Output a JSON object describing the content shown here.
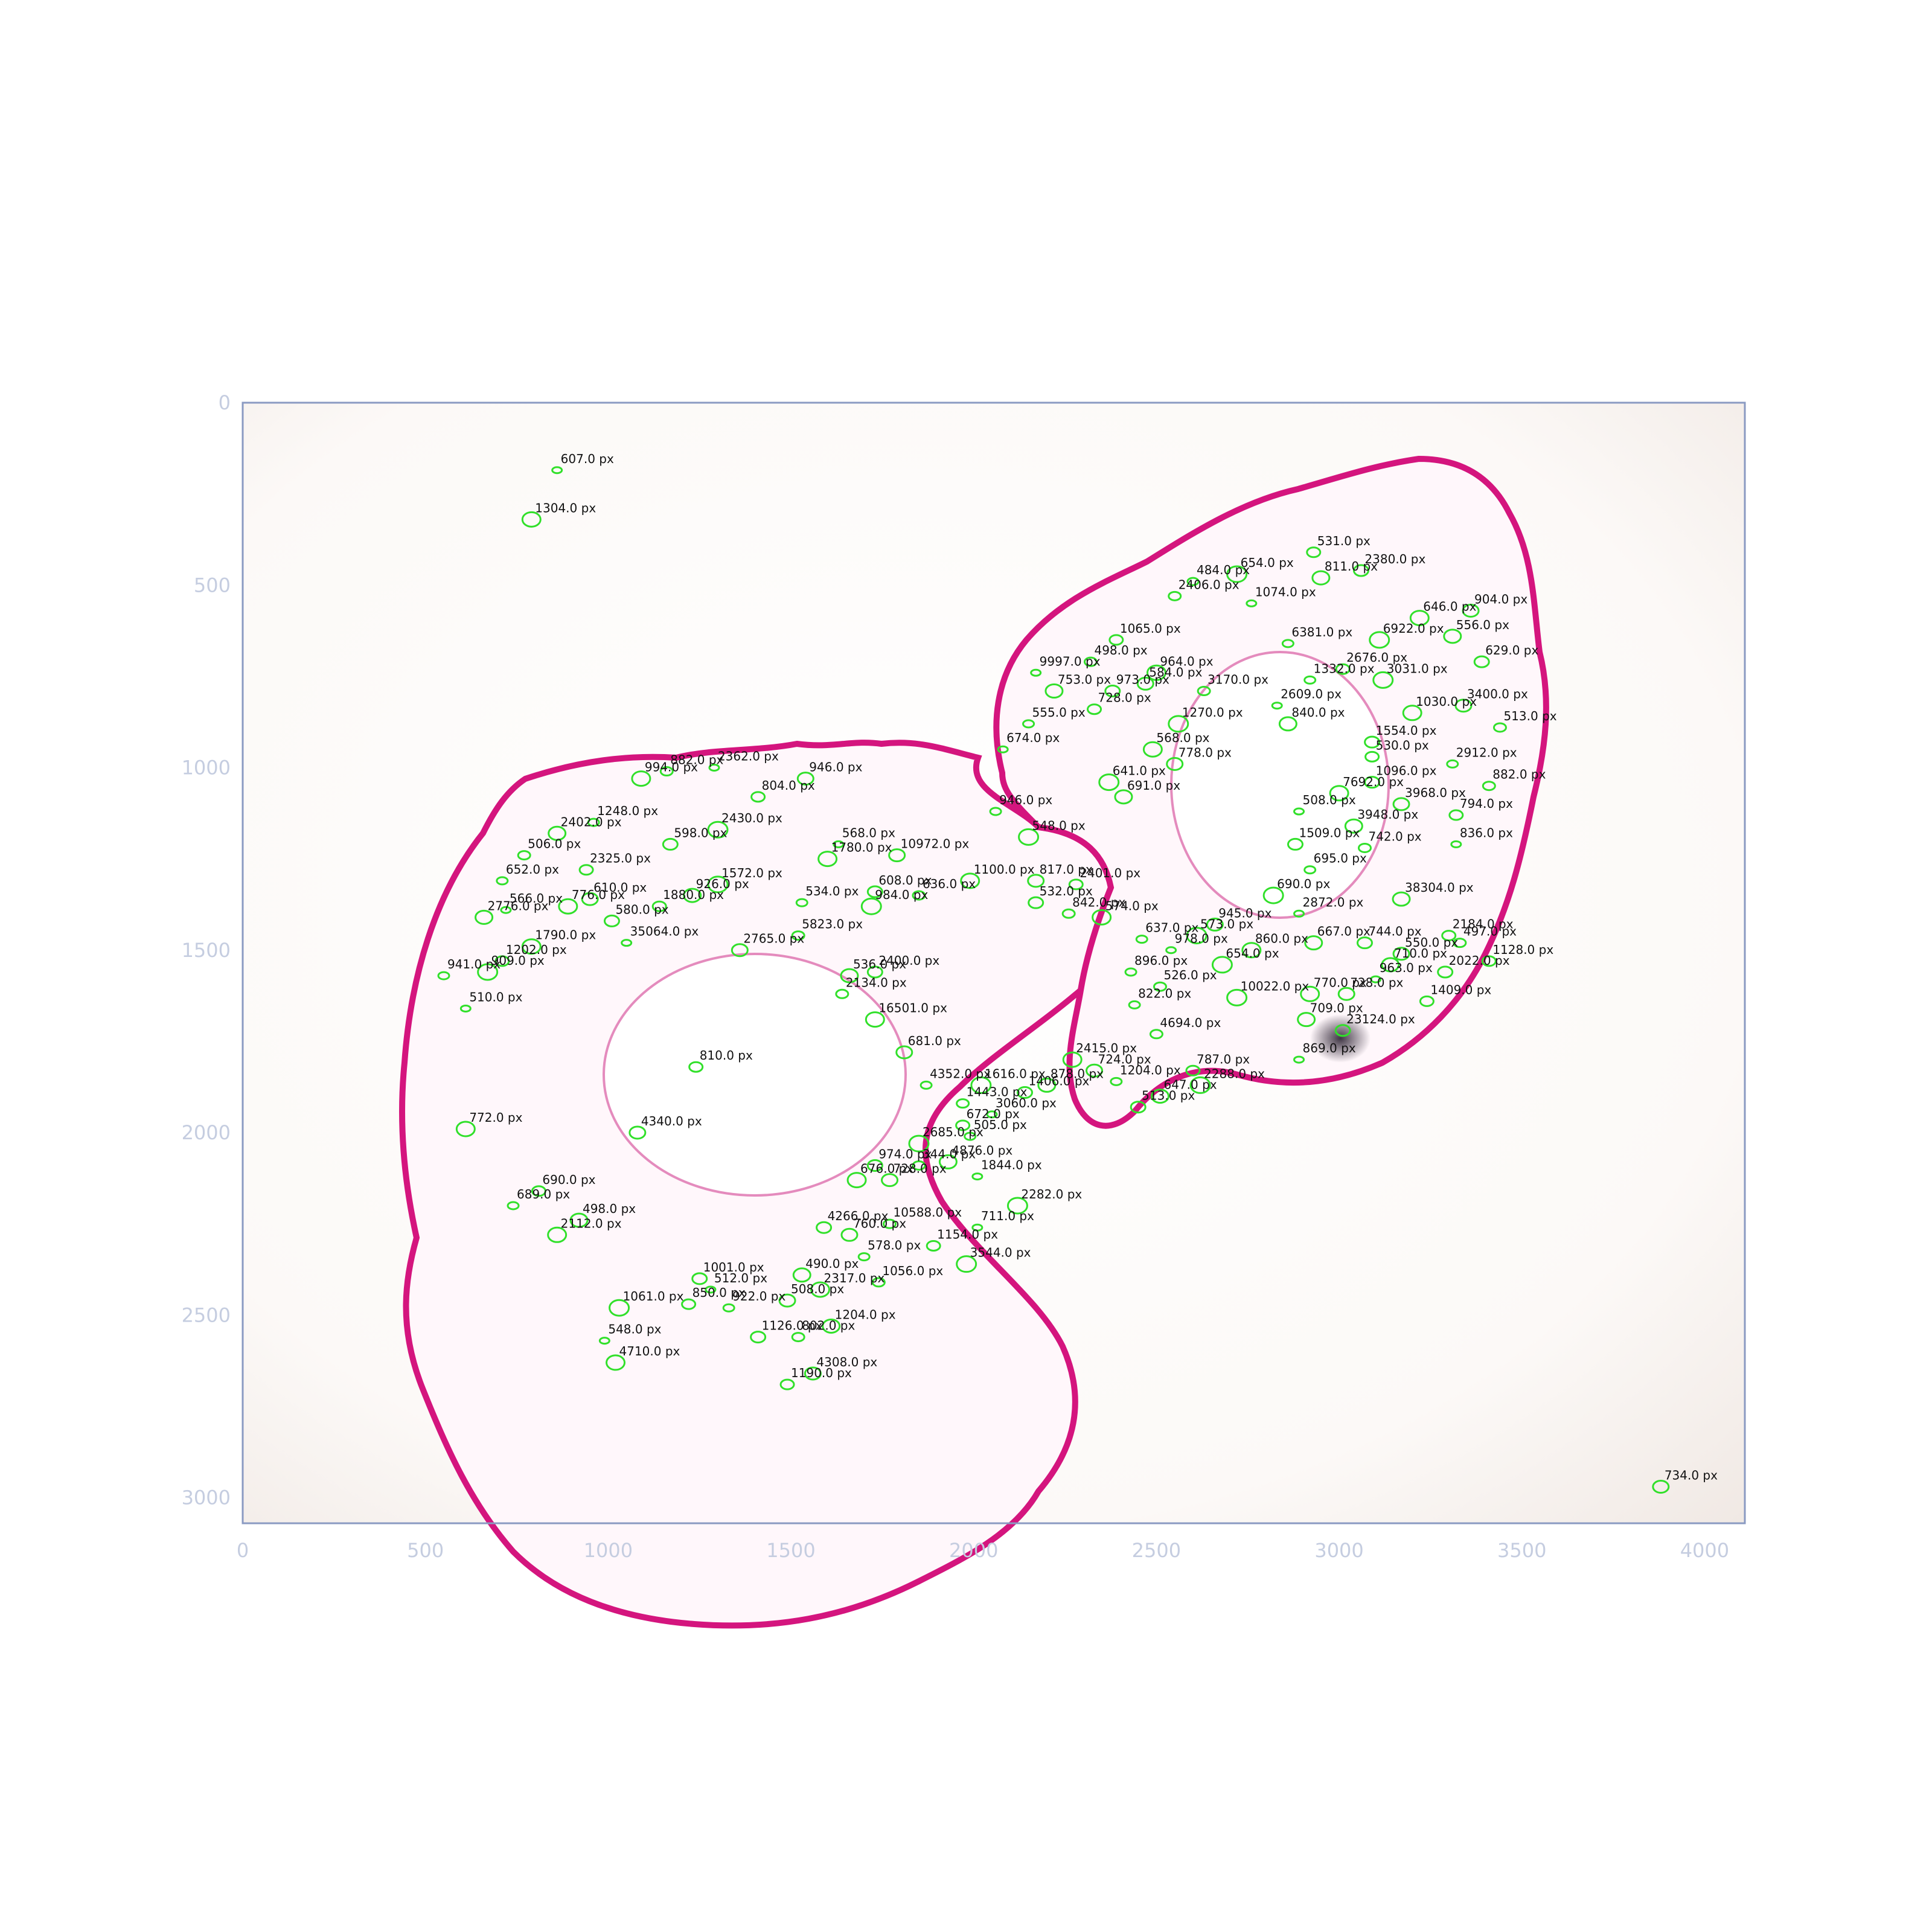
{
  "plot": {
    "x_ticks": [
      0,
      500,
      1000,
      1500,
      2000,
      2500,
      3000,
      3500,
      4000
    ],
    "y_ticks": [
      0,
      500,
      1000,
      1500,
      2000,
      2500,
      3000
    ],
    "x_range": [
      0,
      4110
    ],
    "y_range": [
      0,
      3070
    ],
    "colors": {
      "axis": "#8a9ac2",
      "tick_text": "#c5cde0",
      "contour": "#31e02a",
      "tissue": "#d4157e",
      "background": "#fbf8f6"
    }
  },
  "annotations": [
    {
      "text": "607.0 px",
      "x": 870,
      "y": 165
    },
    {
      "text": "1304.0 px",
      "x": 800,
      "y": 300
    },
    {
      "text": "734.0 px",
      "x": 3890,
      "y": 2950
    },
    {
      "text": "531.0 px",
      "x": 2940,
      "y": 390
    },
    {
      "text": "484.0 px",
      "x": 2610,
      "y": 470
    },
    {
      "text": "654.0 px",
      "x": 2730,
      "y": 450
    },
    {
      "text": "811.0 px",
      "x": 2960,
      "y": 460
    },
    {
      "text": "2380.0 px",
      "x": 3070,
      "y": 440
    },
    {
      "text": "2406.0 px",
      "x": 2560,
      "y": 510
    },
    {
      "text": "1074.0 px",
      "x": 2770,
      "y": 530
    },
    {
      "text": "646.0 px",
      "x": 3230,
      "y": 570
    },
    {
      "text": "904.0 px",
      "x": 3370,
      "y": 550
    },
    {
      "text": "1065.0 px",
      "x": 2400,
      "y": 630
    },
    {
      "text": "6381.0 px",
      "x": 2870,
      "y": 640
    },
    {
      "text": "6922.0 px",
      "x": 3120,
      "y": 630
    },
    {
      "text": "556.0 px",
      "x": 3320,
      "y": 620
    },
    {
      "text": "629.0 px",
      "x": 3400,
      "y": 690
    },
    {
      "text": "498.0 px",
      "x": 2330,
      "y": 690
    },
    {
      "text": "9997.0 px",
      "x": 2180,
      "y": 720
    },
    {
      "text": "964.0 px",
      "x": 2510,
      "y": 720
    },
    {
      "text": "584.0 px",
      "x": 2480,
      "y": 750
    },
    {
      "text": "2676.0 px",
      "x": 3020,
      "y": 710
    },
    {
      "text": "1332.0 px",
      "x": 2930,
      "y": 740
    },
    {
      "text": "3031.0 px",
      "x": 3130,
      "y": 740
    },
    {
      "text": "753.0 px",
      "x": 2230,
      "y": 770
    },
    {
      "text": "973.0 px",
      "x": 2390,
      "y": 770
    },
    {
      "text": "3170.0 px",
      "x": 2640,
      "y": 770
    },
    {
      "text": "2609.0 px",
      "x": 2840,
      "y": 810
    },
    {
      "text": "1030.0 px",
      "x": 3210,
      "y": 830
    },
    {
      "text": "3400.0 px",
      "x": 3350,
      "y": 810
    },
    {
      "text": "728.0 px",
      "x": 2340,
      "y": 820
    },
    {
      "text": "555.0 px",
      "x": 2160,
      "y": 860
    },
    {
      "text": "1270.0 px",
      "x": 2570,
      "y": 860
    },
    {
      "text": "840.0 px",
      "x": 2870,
      "y": 860
    },
    {
      "text": "1554.0 px",
      "x": 3100,
      "y": 910
    },
    {
      "text": "513.0 px",
      "x": 3450,
      "y": 870
    },
    {
      "text": "674.0 px",
      "x": 2090,
      "y": 930
    },
    {
      "text": "568.0 px",
      "x": 2500,
      "y": 930
    },
    {
      "text": "778.0 px",
      "x": 2560,
      "y": 970
    },
    {
      "text": "530.0 px",
      "x": 3100,
      "y": 950
    },
    {
      "text": "2912.0 px",
      "x": 3320,
      "y": 970
    },
    {
      "text": "641.0 px",
      "x": 2380,
      "y": 1020
    },
    {
      "text": "691.0 px",
      "x": 2420,
      "y": 1060
    },
    {
      "text": "1096.0 px",
      "x": 3100,
      "y": 1020
    },
    {
      "text": "882.0 px",
      "x": 3420,
      "y": 1030
    },
    {
      "text": "508.0 px",
      "x": 2900,
      "y": 1100
    },
    {
      "text": "7692.0 px",
      "x": 3010,
      "y": 1050
    },
    {
      "text": "3968.0 px",
      "x": 3180,
      "y": 1080
    },
    {
      "text": "794.0 px",
      "x": 3330,
      "y": 1110
    },
    {
      "text": "946.0 px",
      "x": 2070,
      "y": 1100
    },
    {
      "text": "548.0 px",
      "x": 2160,
      "y": 1170
    },
    {
      "text": "3948.0 px",
      "x": 3050,
      "y": 1140
    },
    {
      "text": "1509.0 px",
      "x": 2890,
      "y": 1190
    },
    {
      "text": "742.0 px",
      "x": 3080,
      "y": 1200
    },
    {
      "text": "836.0 px",
      "x": 3330,
      "y": 1190
    },
    {
      "text": "1100.0 px",
      "x": 2000,
      "y": 1290
    },
    {
      "text": "817.0 px",
      "x": 2180,
      "y": 1290
    },
    {
      "text": "2401.0 px",
      "x": 2290,
      "y": 1300
    },
    {
      "text": "695.0 px",
      "x": 2930,
      "y": 1260
    },
    {
      "text": "690.0 px",
      "x": 2830,
      "y": 1330
    },
    {
      "text": "38304.0 px",
      "x": 3180,
      "y": 1340
    },
    {
      "text": "532.0 px",
      "x": 2180,
      "y": 1350
    },
    {
      "text": "842.0 px",
      "x": 2270,
      "y": 1380
    },
    {
      "text": "2872.0 px",
      "x": 2900,
      "y": 1380
    },
    {
      "text": "574.0 px",
      "x": 2360,
      "y": 1390
    },
    {
      "text": "945.0 px",
      "x": 2670,
      "y": 1410
    },
    {
      "text": "2184.0 px",
      "x": 3310,
      "y": 1440
    },
    {
      "text": "637.0 px",
      "x": 2470,
      "y": 1450
    },
    {
      "text": "573.0 px",
      "x": 2620,
      "y": 1440
    },
    {
      "text": "667.0 px",
      "x": 2940,
      "y": 1460
    },
    {
      "text": "744.0 px",
      "x": 3080,
      "y": 1460
    },
    {
      "text": "497.0 px",
      "x": 3340,
      "y": 1460
    },
    {
      "text": "978.0 px",
      "x": 2550,
      "y": 1480
    },
    {
      "text": "860.0 px",
      "x": 2770,
      "y": 1480
    },
    {
      "text": "550.0 px",
      "x": 3180,
      "y": 1490
    },
    {
      "text": "1128.0 px",
      "x": 3420,
      "y": 1510
    },
    {
      "text": "896.0 px",
      "x": 2440,
      "y": 1540
    },
    {
      "text": "654.0 px",
      "x": 2690,
      "y": 1520
    },
    {
      "text": "710.0 px",
      "x": 3150,
      "y": 1520
    },
    {
      "text": "2022.0 px",
      "x": 3300,
      "y": 1540
    },
    {
      "text": "526.0 px",
      "x": 2520,
      "y": 1580
    },
    {
      "text": "963.0 px",
      "x": 3110,
      "y": 1560
    },
    {
      "text": "770.0 px",
      "x": 2930,
      "y": 1600
    },
    {
      "text": "728.0 px",
      "x": 3030,
      "y": 1600
    },
    {
      "text": "1409.0 px",
      "x": 3250,
      "y": 1620
    },
    {
      "text": "822.0 px",
      "x": 2450,
      "y": 1630
    },
    {
      "text": "10022.0 px",
      "x": 2730,
      "y": 1610
    },
    {
      "text": "709.0 px",
      "x": 2920,
      "y": 1670
    },
    {
      "text": "23124.0 px",
      "x": 3020,
      "y": 1700
    },
    {
      "text": "4694.0 px",
      "x": 2510,
      "y": 1710
    },
    {
      "text": "869.0 px",
      "x": 2900,
      "y": 1780
    },
    {
      "text": "2415.0 px",
      "x": 2280,
      "y": 1780
    },
    {
      "text": "724.0 px",
      "x": 2340,
      "y": 1810
    },
    {
      "text": "787.0 px",
      "x": 2610,
      "y": 1810
    },
    {
      "text": "1204.0 px",
      "x": 2400,
      "y": 1840
    },
    {
      "text": "2288.0 px",
      "x": 2630,
      "y": 1850
    },
    {
      "text": "647.0 px",
      "x": 2520,
      "y": 1880
    },
    {
      "text": "513.0 px",
      "x": 2460,
      "y": 1910
    },
    {
      "text": "882.0 px",
      "x": 1170,
      "y": 990
    },
    {
      "text": "2362.0 px",
      "x": 1300,
      "y": 980
    },
    {
      "text": "994.0 px",
      "x": 1100,
      "y": 1010
    },
    {
      "text": "946.0 px",
      "x": 1550,
      "y": 1010
    },
    {
      "text": "804.0 px",
      "x": 1420,
      "y": 1060
    },
    {
      "text": "1248.0 px",
      "x": 970,
      "y": 1130
    },
    {
      "text": "2430.0 px",
      "x": 1310,
      "y": 1150
    },
    {
      "text": "2402.0 px",
      "x": 870,
      "y": 1160
    },
    {
      "text": "598.0 px",
      "x": 1180,
      "y": 1190
    },
    {
      "text": "506.0 px",
      "x": 780,
      "y": 1220
    },
    {
      "text": "568.0 px",
      "x": 1640,
      "y": 1190
    },
    {
      "text": "1780.0 px",
      "x": 1610,
      "y": 1230
    },
    {
      "text": "10972.0 px",
      "x": 1800,
      "y": 1220
    },
    {
      "text": "2325.0 px",
      "x": 950,
      "y": 1260
    },
    {
      "text": "652.0 px",
      "x": 720,
      "y": 1290
    },
    {
      "text": "1572.0 px",
      "x": 1310,
      "y": 1300
    },
    {
      "text": "926.0 px",
      "x": 1240,
      "y": 1330
    },
    {
      "text": "608.0 px",
      "x": 1740,
      "y": 1320
    },
    {
      "text": "636.0 px",
      "x": 1860,
      "y": 1330
    },
    {
      "text": "566.0 px",
      "x": 730,
      "y": 1370
    },
    {
      "text": "776.0 px",
      "x": 900,
      "y": 1360
    },
    {
      "text": "610.0 px",
      "x": 960,
      "y": 1340
    },
    {
      "text": "1880.0 px",
      "x": 1150,
      "y": 1360
    },
    {
      "text": "534.0 px",
      "x": 1540,
      "y": 1350
    },
    {
      "text": "984.0 px",
      "x": 1730,
      "y": 1360
    },
    {
      "text": "2776.0 px",
      "x": 670,
      "y": 1390
    },
    {
      "text": "580.0 px",
      "x": 1020,
      "y": 1400
    },
    {
      "text": "5823.0 px",
      "x": 1530,
      "y": 1440
    },
    {
      "text": "35064.0 px",
      "x": 1060,
      "y": 1460
    },
    {
      "text": "1790.0 px",
      "x": 800,
      "y": 1470
    },
    {
      "text": "2765.0 px",
      "x": 1370,
      "y": 1480
    },
    {
      "text": "1202.0 px",
      "x": 720,
      "y": 1510
    },
    {
      "text": "941.0 px",
      "x": 560,
      "y": 1550
    },
    {
      "text": "909.0 px",
      "x": 680,
      "y": 1540
    },
    {
      "text": "536.0 px",
      "x": 1670,
      "y": 1550
    },
    {
      "text": "2400.0 px",
      "x": 1740,
      "y": 1540
    },
    {
      "text": "2134.0 px",
      "x": 1650,
      "y": 1600
    },
    {
      "text": "510.0 px",
      "x": 620,
      "y": 1640
    },
    {
      "text": "16501.0 px",
      "x": 1740,
      "y": 1670
    },
    {
      "text": "681.0 px",
      "x": 1820,
      "y": 1760
    },
    {
      "text": "810.0 px",
      "x": 1250,
      "y": 1800
    },
    {
      "text": "4352.0 px",
      "x": 1880,
      "y": 1850
    },
    {
      "text": "1616.0 px",
      "x": 2030,
      "y": 1850
    },
    {
      "text": "878.0 px",
      "x": 2210,
      "y": 1850
    },
    {
      "text": "1406.0 px",
      "x": 2150,
      "y": 1870
    },
    {
      "text": "1443.0 px",
      "x": 1980,
      "y": 1900
    },
    {
      "text": "3060.0 px",
      "x": 2060,
      "y": 1930
    },
    {
      "text": "772.0 px",
      "x": 620,
      "y": 1970
    },
    {
      "text": "4340.0 px",
      "x": 1090,
      "y": 1980
    },
    {
      "text": "672.0 px",
      "x": 1980,
      "y": 1960
    },
    {
      "text": "505.0 px",
      "x": 2000,
      "y": 1990
    },
    {
      "text": "2685.0 px",
      "x": 1860,
      "y": 2010
    },
    {
      "text": "4876.0 px",
      "x": 1940,
      "y": 2060
    },
    {
      "text": "974.0 px",
      "x": 1740,
      "y": 2070
    },
    {
      "text": "344.0 px",
      "x": 1860,
      "y": 2070
    },
    {
      "text": "1844.0 px",
      "x": 2020,
      "y": 2100
    },
    {
      "text": "676.0 px",
      "x": 1690,
      "y": 2110
    },
    {
      "text": "728.0 px",
      "x": 1780,
      "y": 2110
    },
    {
      "text": "690.0 px",
      "x": 820,
      "y": 2140
    },
    {
      "text": "689.0 px",
      "x": 750,
      "y": 2180
    },
    {
      "text": "2282.0 px",
      "x": 2130,
      "y": 2180
    },
    {
      "text": "498.0 px",
      "x": 930,
      "y": 2220
    },
    {
      "text": "4266.0 px",
      "x": 1600,
      "y": 2240
    },
    {
      "text": "10588.0 px",
      "x": 1780,
      "y": 2230
    },
    {
      "text": "711.0 px",
      "x": 2020,
      "y": 2240
    },
    {
      "text": "2112.0 px",
      "x": 870,
      "y": 2260
    },
    {
      "text": "760.0 px",
      "x": 1670,
      "y": 2260
    },
    {
      "text": "1154.0 px",
      "x": 1900,
      "y": 2290
    },
    {
      "text": "578.0 px",
      "x": 1710,
      "y": 2320
    },
    {
      "text": "3544.0 px",
      "x": 1990,
      "y": 2340
    },
    {
      "text": "490.0 px",
      "x": 1540,
      "y": 2370
    },
    {
      "text": "1001.0 px",
      "x": 1260,
      "y": 2380
    },
    {
      "text": "1056.0 px",
      "x": 1750,
      "y": 2390
    },
    {
      "text": "512.0 px",
      "x": 1290,
      "y": 2410
    },
    {
      "text": "2317.0 px",
      "x": 1590,
      "y": 2410
    },
    {
      "text": "508.0 px",
      "x": 1500,
      "y": 2440
    },
    {
      "text": "850.0 px",
      "x": 1230,
      "y": 2450
    },
    {
      "text": "922.0 px",
      "x": 1340,
      "y": 2460
    },
    {
      "text": "1061.0 px",
      "x": 1040,
      "y": 2460
    },
    {
      "text": "1204.0 px",
      "x": 1620,
      "y": 2510
    },
    {
      "text": "1126.0 px",
      "x": 1420,
      "y": 2540
    },
    {
      "text": "802.0 px",
      "x": 1530,
      "y": 2540
    },
    {
      "text": "548.0 px",
      "x": 1000,
      "y": 2550
    },
    {
      "text": "4710.0 px",
      "x": 1030,
      "y": 2610
    },
    {
      "text": "4308.0 px",
      "x": 1570,
      "y": 2640
    },
    {
      "text": "1190.0 px",
      "x": 1500,
      "y": 2670
    }
  ]
}
